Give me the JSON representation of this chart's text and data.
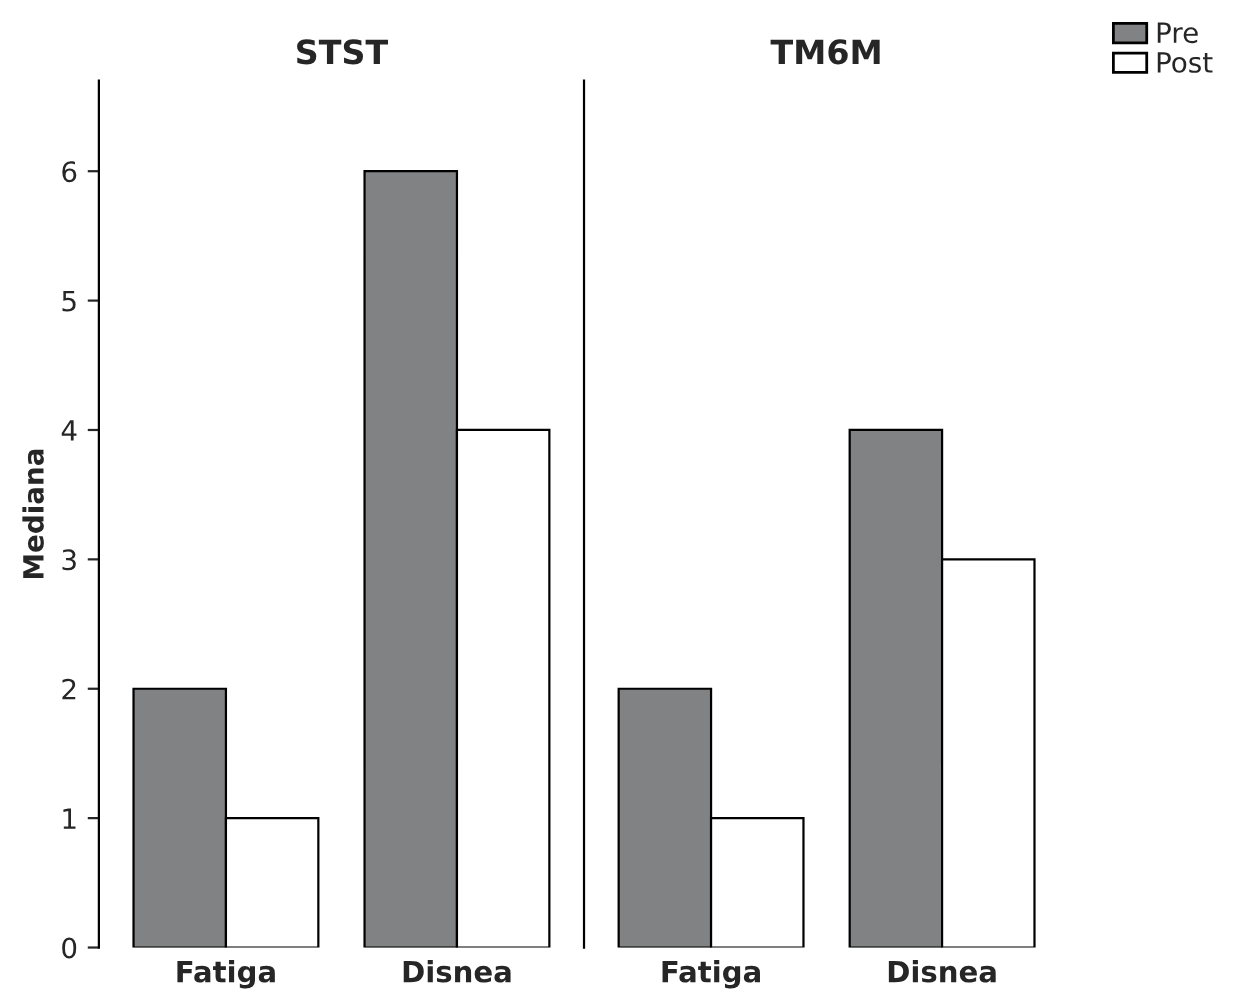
{
  "chart_data": [
    {
      "type": "bar",
      "title": "STST",
      "ylabel": "Mediana",
      "categories": [
        "Fatiga",
        "Disnea"
      ],
      "series": [
        {
          "name": "Pre",
          "color": "#808283",
          "values": [
            2,
            6
          ]
        },
        {
          "name": "Post",
          "color": "#ffffff",
          "values": [
            1,
            4
          ]
        }
      ],
      "ylim": [
        0,
        6.7
      ],
      "yticks": [
        0,
        1,
        2,
        3,
        4,
        5,
        6
      ],
      "grid": false,
      "legend": "top right"
    },
    {
      "type": "bar",
      "title": "TM6M",
      "categories": [
        "Fatiga",
        "Disnea"
      ],
      "series": [
        {
          "name": "Pre",
          "color": "#808283",
          "values": [
            2,
            4
          ]
        },
        {
          "name": "Post",
          "color": "#ffffff",
          "values": [
            1,
            3
          ]
        }
      ],
      "ylim": [
        0,
        6.7
      ],
      "yticks": [
        0,
        1,
        2,
        3,
        4,
        5,
        6
      ],
      "tick_labels": "x",
      "grid": false
    }
  ]
}
